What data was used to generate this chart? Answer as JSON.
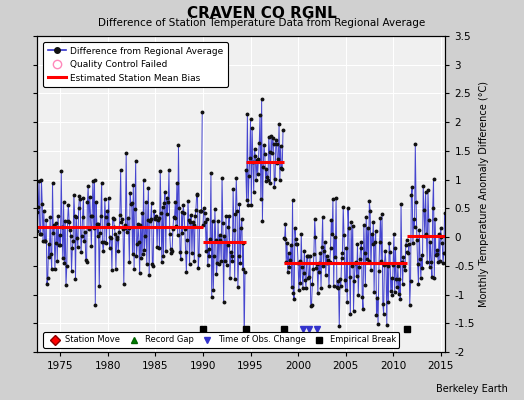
{
  "title": "CRAVEN CO RGNL",
  "subtitle": "Difference of Station Temperature Data from Regional Average",
  "ylabel_right": "Monthly Temperature Anomaly Difference (°C)",
  "xlim": [
    1972.5,
    2015.5
  ],
  "ylim": [
    -2.0,
    3.5
  ],
  "yticks": [
    -2,
    -1.5,
    -1,
    -0.5,
    0,
    0.5,
    1,
    1.5,
    2,
    2.5,
    3,
    3.5
  ],
  "xticks": [
    1975,
    1980,
    1985,
    1990,
    1995,
    2000,
    2005,
    2010,
    2015
  ],
  "bg_color": "#f0f0f0",
  "grid_color": "#ffffff",
  "line_color": "#3333cc",
  "dot_color": "#111111",
  "bias_color": "#ff0000",
  "fig_bg_color": "#d0d0d0",
  "watermark": "Berkeley Earth",
  "segments": [
    {
      "x_start": 1972.5,
      "x_end": 1990.0,
      "bias": 0.18
    },
    {
      "x_start": 1990.0,
      "x_end": 1994.5,
      "bias": -0.08
    },
    {
      "x_start": 1994.5,
      "x_end": 1998.5,
      "bias": 1.3
    },
    {
      "x_start": 1998.5,
      "x_end": 2011.5,
      "bias": -0.45
    },
    {
      "x_start": 2011.5,
      "x_end": 2015.5,
      "bias": 0.02
    }
  ],
  "empirical_breaks": [
    1990.0,
    1994.5,
    1998.5,
    2011.5
  ],
  "obs_changes": [
    2000.5,
    2001.2,
    2002.0
  ],
  "random_seed": 42,
  "noise_std": 0.52
}
